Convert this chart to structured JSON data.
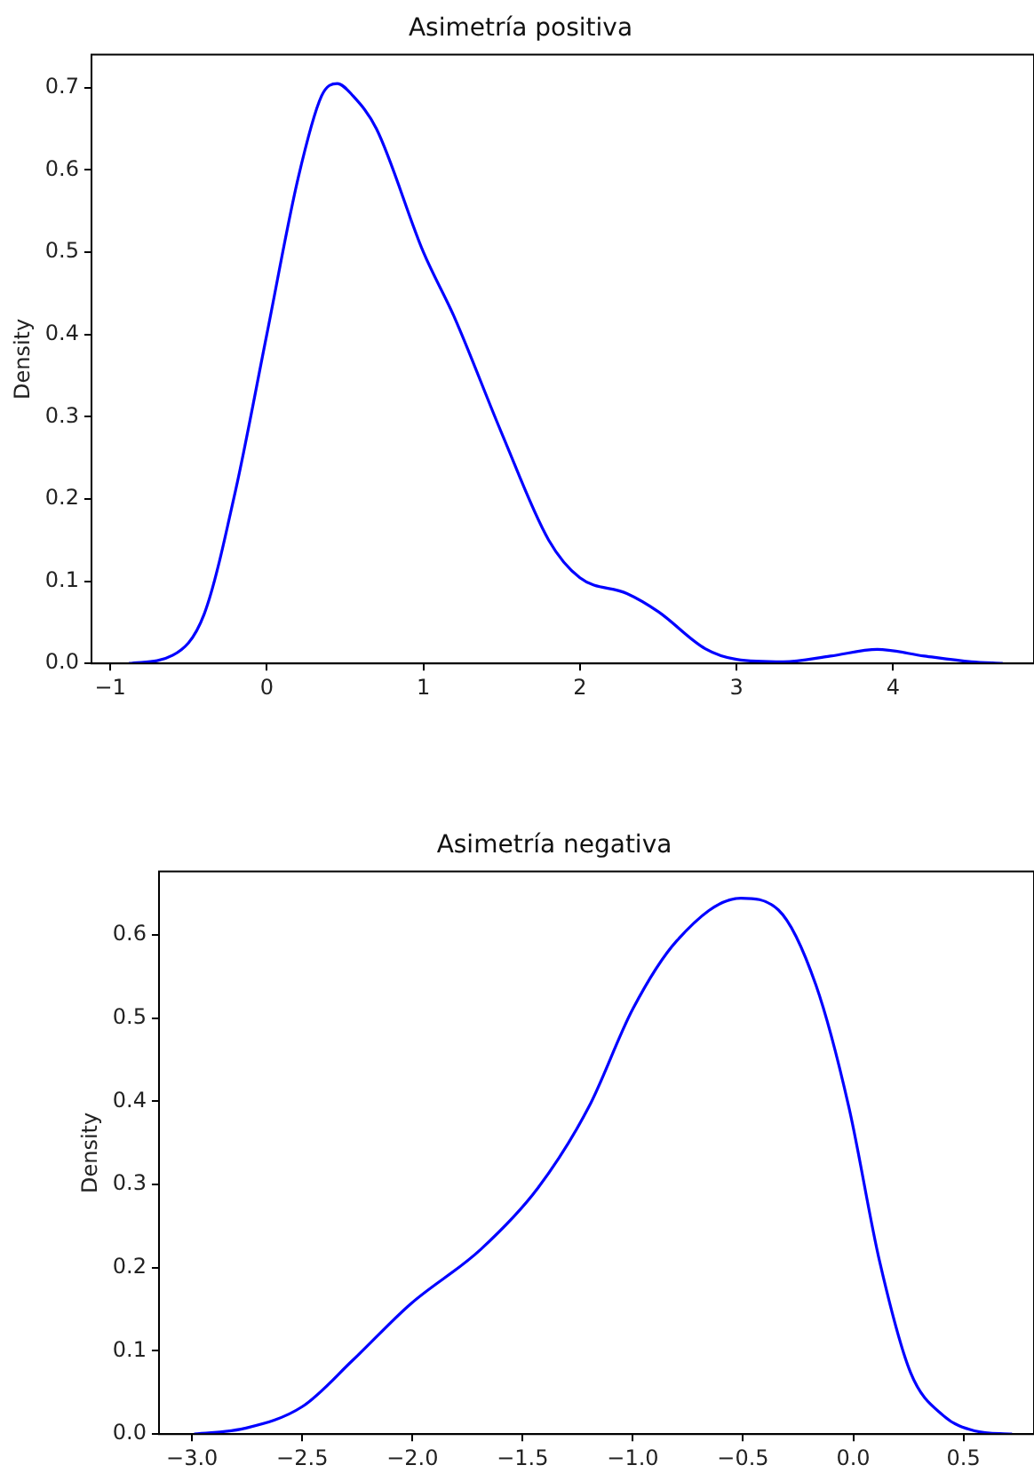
{
  "chart_data": [
    {
      "type": "line",
      "title": "Asimetría positiva",
      "ylabel": "Density",
      "grid": false,
      "legend": false,
      "marker": "none",
      "x": [
        -0.88,
        -0.6,
        -0.4,
        -0.2,
        0,
        0.2,
        0.35,
        0.45,
        0.55,
        0.7,
        1.0,
        1.2,
        1.5,
        1.8,
        2.0,
        2.3,
        2.5,
        2.8,
        3.0,
        3.3,
        3.6,
        3.9,
        4.2,
        4.5,
        4.7
      ],
      "series": [
        {
          "color": "#0000ff",
          "values": [
            0.0,
            0.01,
            0.06,
            0.21,
            0.4,
            0.59,
            0.69,
            0.705,
            0.69,
            0.65,
            0.5,
            0.42,
            0.28,
            0.15,
            0.104,
            0.085,
            0.063,
            0.018,
            0.005,
            0.002,
            0.009,
            0.017,
            0.009,
            0.002,
            0.0
          ]
        }
      ],
      "xlim": [
        -1.12,
        4.9
      ],
      "xticks": [
        -1,
        0,
        1,
        2,
        3,
        4
      ],
      "ylim": [
        0,
        0.74
      ],
      "yticks": [
        {
          "value": 0,
          "label": "0.0"
        },
        0.1,
        0.2,
        0.3,
        0.4,
        0.5,
        0.6,
        0.7
      ]
    },
    {
      "type": "line",
      "title": "Asimetría negativa",
      "ylabel": "Density",
      "grid": false,
      "legend": false,
      "marker": "none",
      "x": [
        -2.99,
        -2.76,
        -2.5,
        -2.27,
        -2.01,
        -1.69,
        -1.43,
        -1.2,
        -1.0,
        -0.8,
        -0.51,
        -0.34,
        -0.17,
        -0.02,
        0.12,
        0.26,
        0.41,
        0.55,
        0.72
      ],
      "series": [
        {
          "color": "#0000ff",
          "values": [
            0.0,
            0.007,
            0.033,
            0.089,
            0.156,
            0.222,
            0.296,
            0.393,
            0.511,
            0.593,
            0.644,
            0.63,
            0.54,
            0.393,
            0.207,
            0.074,
            0.022,
            0.004,
            0.0
          ]
        }
      ],
      "xlim": [
        -3.15,
        0.82
      ],
      "xticks": [
        {
          "value": -3.0,
          "label": "−3.0"
        },
        {
          "value": -2.5,
          "label": "−2.5"
        },
        {
          "value": -2.0,
          "label": "−2.0"
        },
        {
          "value": -1.5,
          "label": "−1.5"
        },
        {
          "value": -1.0,
          "label": "−1.0"
        },
        {
          "value": -0.5,
          "label": "−0.5"
        },
        {
          "value": 0.0,
          "label": "0.0"
        },
        {
          "value": 0.5,
          "label": "0.5"
        }
      ],
      "ylim": [
        0,
        0.676
      ],
      "yticks": [
        {
          "value": 0,
          "label": "0.0"
        },
        0.1,
        0.2,
        0.3,
        0.4,
        0.5,
        0.6
      ]
    }
  ]
}
